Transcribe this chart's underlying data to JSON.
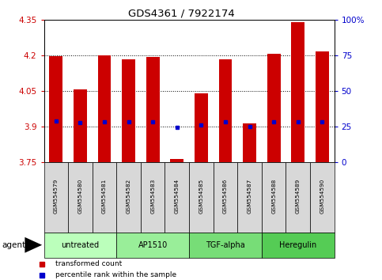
{
  "title": "GDS4361 / 7922174",
  "samples": [
    "GSM554579",
    "GSM554580",
    "GSM554581",
    "GSM554582",
    "GSM554583",
    "GSM554584",
    "GSM554585",
    "GSM554586",
    "GSM554587",
    "GSM554588",
    "GSM554589",
    "GSM554590"
  ],
  "bar_tops": [
    4.197,
    4.057,
    4.2,
    4.183,
    4.194,
    3.766,
    4.04,
    4.183,
    3.913,
    4.205,
    4.34,
    4.215
  ],
  "bar_bottom": 3.75,
  "blue_vals": [
    3.924,
    3.917,
    3.92,
    3.92,
    3.92,
    3.898,
    3.908,
    3.92,
    3.9,
    3.92,
    3.922,
    3.92
  ],
  "ylim": [
    3.75,
    4.35
  ],
  "yticks_left": [
    3.75,
    3.9,
    4.05,
    4.2,
    4.35
  ],
  "ytick_left_labels": [
    "3.75",
    "3.9",
    "4.05",
    "4.2",
    "4.35"
  ],
  "yticks_right": [
    0,
    25,
    50,
    75,
    100
  ],
  "ytick_right_labels": [
    "0",
    "25",
    "50",
    "75",
    "100%"
  ],
  "bar_color": "#cc0000",
  "blue_color": "#0000cc",
  "agent_groups": [
    {
      "label": "untreated",
      "start": 0,
      "end": 3,
      "color": "#bbffbb"
    },
    {
      "label": "AP1510",
      "start": 3,
      "end": 6,
      "color": "#99ee99"
    },
    {
      "label": "TGF-alpha",
      "start": 6,
      "end": 9,
      "color": "#77dd77"
    },
    {
      "label": "Heregulin",
      "start": 9,
      "end": 12,
      "color": "#55cc55"
    }
  ],
  "tick_color_left": "#cc0000",
  "tick_color_right": "#0000cc",
  "legend_items": [
    {
      "label": "transformed count",
      "color": "#cc0000"
    },
    {
      "label": "percentile rank within the sample",
      "color": "#0000cc"
    }
  ],
  "agent_label": "agent",
  "grid_dotted_vals": [
    3.9,
    4.05,
    4.2
  ],
  "bar_width": 0.55
}
